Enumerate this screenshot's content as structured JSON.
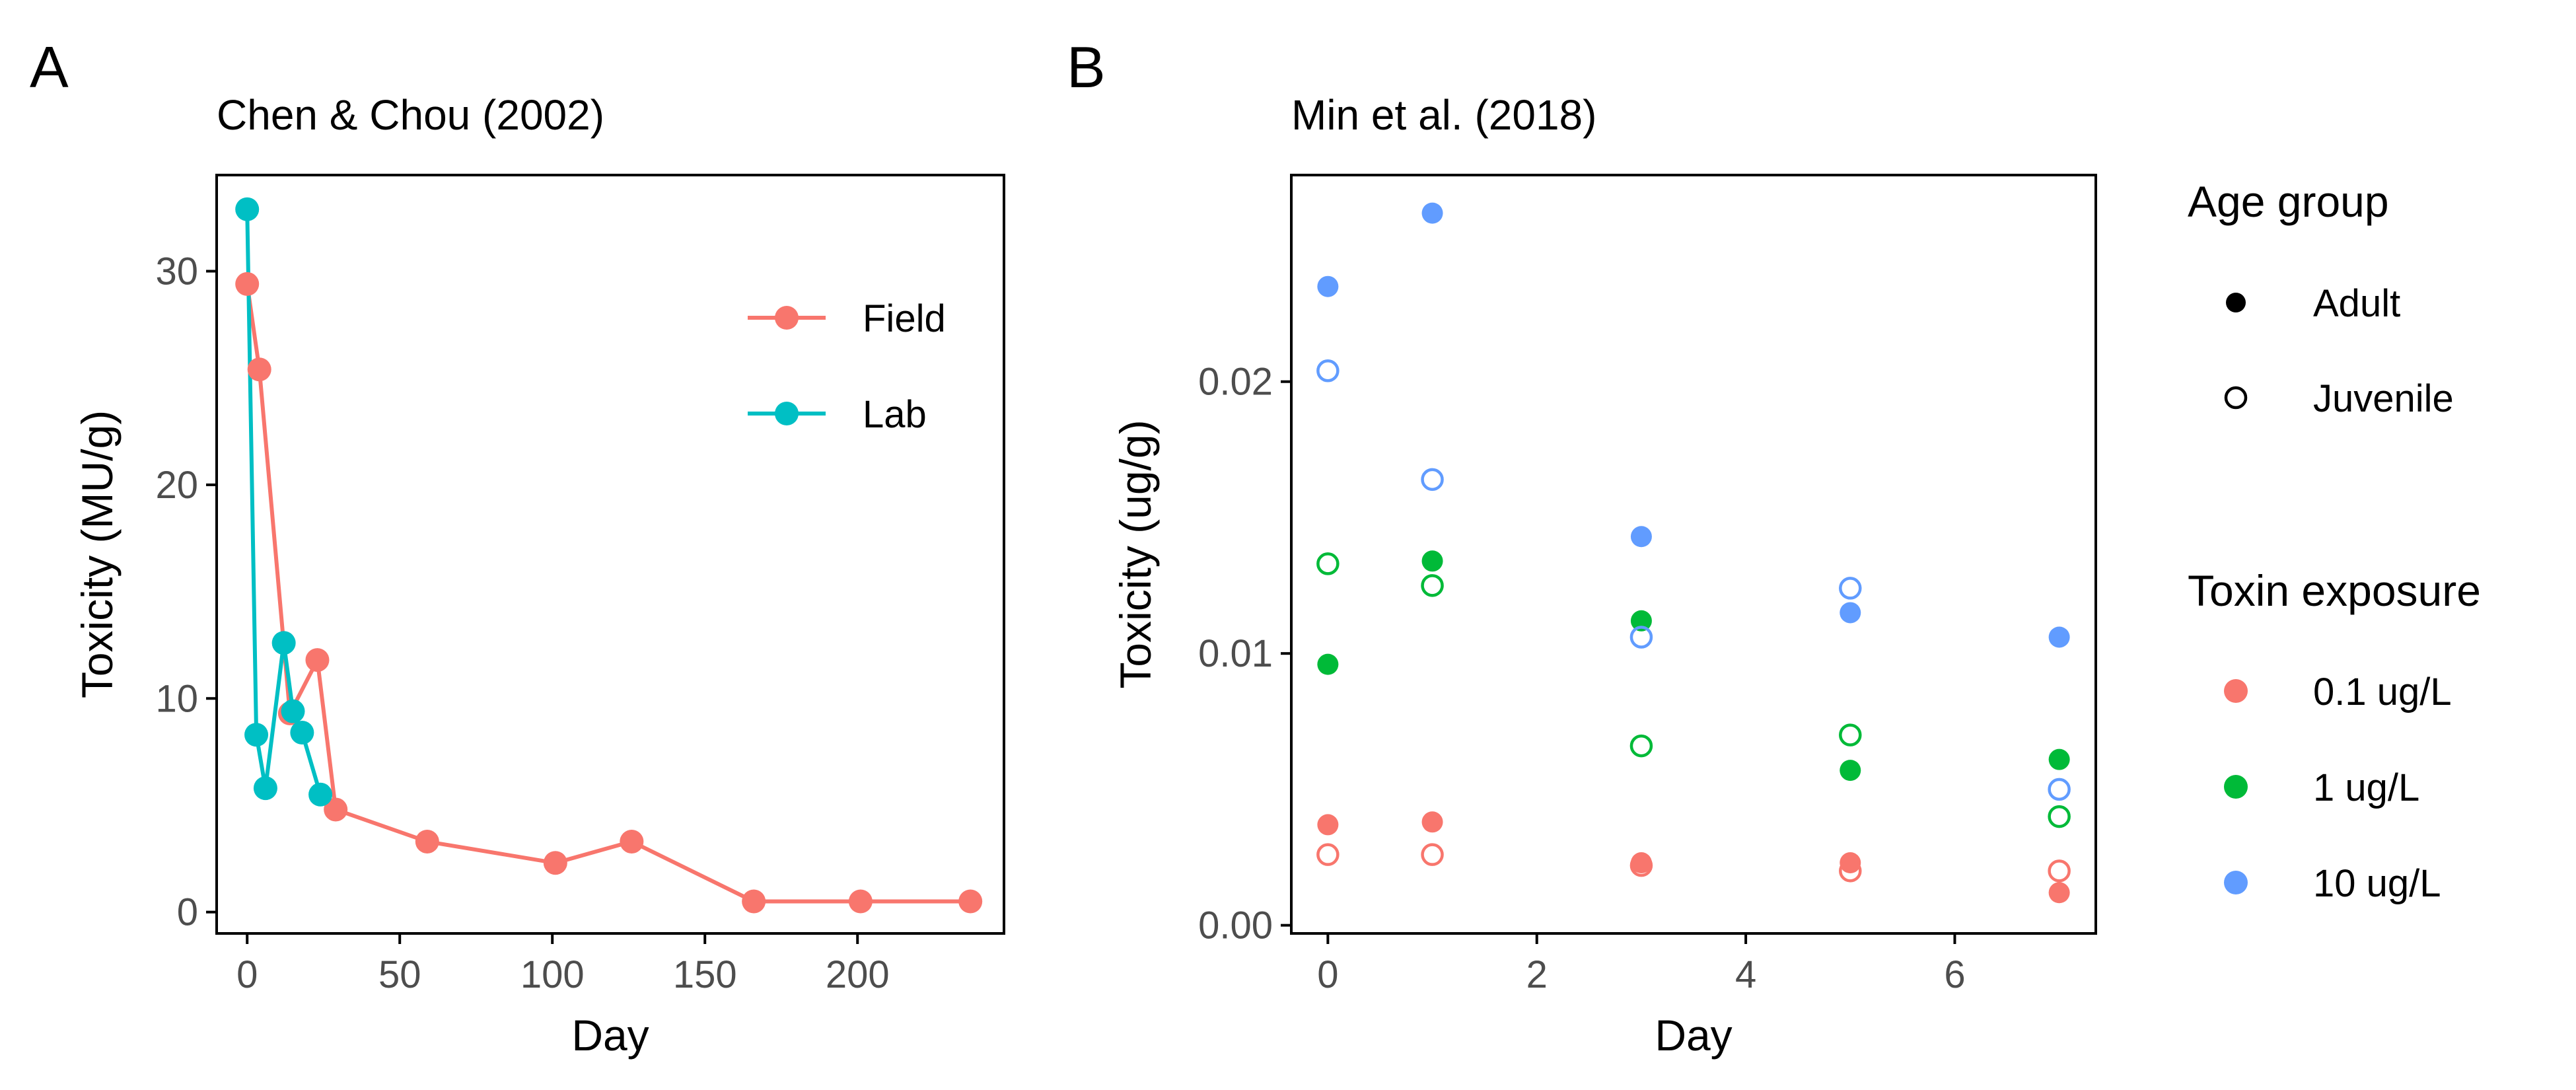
{
  "panel_labels": {
    "a": "A",
    "b": "B"
  },
  "colors": {
    "field": "#F8766D",
    "lab": "#00BFC4",
    "dose_0_1": "#F8766D",
    "dose_1": "#00BA38",
    "dose_10": "#619CFF",
    "axis": "#000000",
    "tick_text": "#4D4D4D"
  },
  "chart_data": [
    {
      "type": "line",
      "title": "Chen & Chou (2002)",
      "xlabel": "Day",
      "ylabel": "Toxicity (MU/g)",
      "xlim": [
        -10,
        248
      ],
      "ylim": [
        -1,
        34.5
      ],
      "xticks": [
        0,
        50,
        100,
        150,
        200
      ],
      "yticks": [
        0,
        10,
        20,
        30
      ],
      "legend_position": "inside-top-right",
      "grid": false,
      "series": [
        {
          "name": "Field",
          "color_key": "field",
          "x": [
            0,
            4,
            14,
            23,
            29,
            59,
            101,
            126,
            166,
            201,
            237
          ],
          "y": [
            29.4,
            25.4,
            9.3,
            11.8,
            4.8,
            3.3,
            2.3,
            3.3,
            0.5,
            0.5,
            0.5
          ]
        },
        {
          "name": "Lab",
          "color_key": "lab",
          "x": [
            0,
            3,
            6,
            12,
            15,
            18,
            24
          ],
          "y": [
            32.9,
            8.3,
            5.8,
            12.6,
            9.4,
            8.4,
            5.5
          ]
        }
      ]
    },
    {
      "type": "scatter",
      "title": "Min et al. (2018)",
      "xlabel": "Day",
      "ylabel": "Toxicity (ug/g)",
      "xlim": [
        -0.35,
        7.35
      ],
      "ylim": [
        -0.0003,
        0.0276
      ],
      "xticks": [
        0,
        2,
        4,
        6
      ],
      "yticks": [
        0.0,
        0.01,
        0.02
      ],
      "ytick_labels": [
        "0.00",
        "0.01",
        "0.02"
      ],
      "grid": false,
      "legend_position": "right",
      "legend_shape": {
        "title": "Age group",
        "entries": [
          "Adult",
          "Juvenile"
        ]
      },
      "legend_color": {
        "title": "Toxin exposure",
        "entries": [
          {
            "label": "0.1 ug/L",
            "color_key": "dose_0_1"
          },
          {
            "label": "1 ug/L",
            "color_key": "dose_1"
          },
          {
            "label": "10 ug/L",
            "color_key": "dose_10"
          }
        ]
      },
      "series": [
        {
          "exposure": "0.1 ug/L",
          "age": "Adult",
          "color_key": "dose_0_1",
          "x": [
            0,
            1,
            3,
            5,
            7
          ],
          "y": [
            0.0037,
            0.0038,
            0.0023,
            0.0023,
            0.0012
          ]
        },
        {
          "exposure": "0.1 ug/L",
          "age": "Juvenile",
          "color_key": "dose_0_1",
          "x": [
            0,
            1,
            3,
            5,
            7
          ],
          "y": [
            0.0026,
            0.0026,
            0.0022,
            0.002,
            0.002
          ]
        },
        {
          "exposure": "1 ug/L",
          "age": "Adult",
          "color_key": "dose_1",
          "x": [
            0,
            1,
            3,
            5,
            7
          ],
          "y": [
            0.0096,
            0.0134,
            0.0112,
            0.0057,
            0.0061
          ]
        },
        {
          "exposure": "1 ug/L",
          "age": "Juvenile",
          "color_key": "dose_1",
          "x": [
            0,
            1,
            3,
            5,
            7
          ],
          "y": [
            0.0133,
            0.0125,
            0.0066,
            0.007,
            0.004
          ]
        },
        {
          "exposure": "10 ug/L",
          "age": "Adult",
          "color_key": "dose_10",
          "x": [
            0,
            1,
            3,
            5,
            7
          ],
          "y": [
            0.0235,
            0.0262,
            0.0143,
            0.0115,
            0.0106
          ]
        },
        {
          "exposure": "10 ug/L",
          "age": "Juvenile",
          "color_key": "dose_10",
          "x": [
            0,
            1,
            3,
            5,
            7
          ],
          "y": [
            0.0204,
            0.0164,
            0.0106,
            0.0124,
            0.005
          ]
        }
      ]
    }
  ]
}
